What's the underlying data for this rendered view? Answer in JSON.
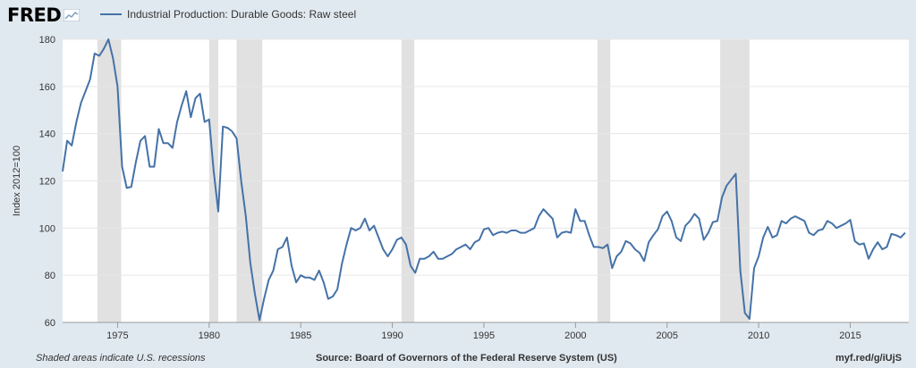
{
  "header": {
    "logo_text": "FRED",
    "logo_icon": "fred-chart-icon"
  },
  "footer": {
    "note": "Shaded areas indicate U.S. recessions",
    "source": "Source: Board of Governors of the Federal Reserve System (US)",
    "link": "myf.red/g/iUjS"
  },
  "colors": {
    "series": "#4572a7",
    "recession": "#e1e1e1",
    "grid": "#e6e6e6",
    "background": "#e1e9f0",
    "plot": "#ffffff"
  },
  "chart_data": {
    "type": "line",
    "ylabel": "Index 2012=100",
    "xlabel": "",
    "ylim": [
      60,
      180
    ],
    "xlim": [
      1972.0,
      2018.2
    ],
    "yticks": [
      60,
      80,
      100,
      120,
      140,
      160,
      180
    ],
    "xticks": [
      1975,
      1980,
      1985,
      1990,
      1995,
      2000,
      2005,
      2010,
      2015
    ],
    "grid": true,
    "legend_position": "top-left",
    "recessions": [
      [
        1973.9,
        1975.2
      ],
      [
        1980.0,
        1980.5
      ],
      [
        1981.5,
        1982.9
      ],
      [
        1990.5,
        1991.2
      ],
      [
        2001.2,
        2001.9
      ],
      [
        2007.9,
        2009.5
      ]
    ],
    "series": [
      {
        "name": "Industrial Production: Durable Goods: Raw steel",
        "x": [
          1972.0,
          1972.25,
          1972.5,
          1972.75,
          1973.0,
          1973.25,
          1973.5,
          1973.75,
          1974.0,
          1974.25,
          1974.5,
          1974.75,
          1975.0,
          1975.25,
          1975.5,
          1975.75,
          1976.0,
          1976.25,
          1976.5,
          1976.75,
          1977.0,
          1977.25,
          1977.5,
          1977.75,
          1978.0,
          1978.25,
          1978.5,
          1978.75,
          1979.0,
          1979.25,
          1979.5,
          1979.75,
          1980.0,
          1980.25,
          1980.5,
          1980.75,
          1981.0,
          1981.25,
          1981.5,
          1981.75,
          1982.0,
          1982.25,
          1982.5,
          1982.75,
          1983.0,
          1983.25,
          1983.5,
          1983.75,
          1984.0,
          1984.25,
          1984.5,
          1984.75,
          1985.0,
          1985.25,
          1985.5,
          1985.75,
          1986.0,
          1986.25,
          1986.5,
          1986.75,
          1987.0,
          1987.25,
          1987.5,
          1987.75,
          1988.0,
          1988.25,
          1988.5,
          1988.75,
          1989.0,
          1989.25,
          1989.5,
          1989.75,
          1990.0,
          1990.25,
          1990.5,
          1990.75,
          1991.0,
          1991.25,
          1991.5,
          1991.75,
          1992.0,
          1992.25,
          1992.5,
          1992.75,
          1993.0,
          1993.25,
          1993.5,
          1993.75,
          1994.0,
          1994.25,
          1994.5,
          1994.75,
          1995.0,
          1995.25,
          1995.5,
          1995.75,
          1996.0,
          1996.25,
          1996.5,
          1996.75,
          1997.0,
          1997.25,
          1997.5,
          1997.75,
          1998.0,
          1998.25,
          1998.5,
          1998.75,
          1999.0,
          1999.25,
          1999.5,
          1999.75,
          2000.0,
          2000.25,
          2000.5,
          2000.75,
          2001.0,
          2001.25,
          2001.5,
          2001.75,
          2002.0,
          2002.25,
          2002.5,
          2002.75,
          2003.0,
          2003.25,
          2003.5,
          2003.75,
          2004.0,
          2004.25,
          2004.5,
          2004.75,
          2005.0,
          2005.25,
          2005.5,
          2005.75,
          2006.0,
          2006.25,
          2006.5,
          2006.75,
          2007.0,
          2007.25,
          2007.5,
          2007.75,
          2008.0,
          2008.25,
          2008.5,
          2008.75,
          2009.0,
          2009.25,
          2009.5,
          2009.75,
          2010.0,
          2010.25,
          2010.5,
          2010.75,
          2011.0,
          2011.25,
          2011.5,
          2011.75,
          2012.0,
          2012.25,
          2012.5,
          2012.75,
          2013.0,
          2013.25,
          2013.5,
          2013.75,
          2014.0,
          2014.25,
          2014.5,
          2014.75,
          2015.0,
          2015.25,
          2015.5,
          2015.75,
          2016.0,
          2016.25,
          2016.5,
          2016.75,
          2017.0,
          2017.25,
          2017.5,
          2017.75,
          2018.0
        ],
        "values": [
          124,
          137,
          135,
          145,
          153,
          158,
          163,
          174,
          173,
          176,
          180,
          172,
          160,
          126,
          117,
          117.5,
          128,
          137,
          139,
          126,
          126,
          142,
          136,
          136,
          134,
          145,
          152,
          158,
          147,
          155,
          157,
          145,
          146,
          124,
          107,
          143,
          142.5,
          141,
          138,
          120,
          105,
          85,
          72,
          61,
          70,
          78,
          82,
          91,
          92,
          96,
          84,
          77,
          80,
          79,
          79,
          78,
          82,
          77,
          70,
          71,
          74,
          85,
          93,
          100,
          99,
          100,
          104,
          99,
          101,
          96,
          91,
          88,
          91,
          95,
          96,
          93,
          84,
          81,
          87,
          87,
          88,
          90,
          87,
          87,
          88,
          89,
          91,
          92,
          93,
          91,
          94,
          95,
          99.5,
          100,
          97,
          98,
          98.5,
          98,
          99,
          99,
          98,
          98,
          99,
          100,
          105,
          108,
          106,
          104,
          96,
          98,
          98.5,
          98,
          108,
          103,
          103,
          97,
          92,
          92,
          91.5,
          93,
          83,
          88,
          90,
          94.5,
          93.5,
          91,
          89.5,
          86,
          94,
          97,
          99.5,
          105,
          107,
          103,
          96,
          94.5,
          101,
          103,
          106,
          104,
          95,
          98,
          102.5,
          103,
          113,
          118,
          120.5,
          123,
          82,
          64,
          61.5,
          83,
          88,
          96,
          100.5,
          96,
          97,
          103,
          102,
          104,
          105,
          104,
          103,
          98,
          97,
          99,
          99.5,
          103,
          102,
          100,
          101,
          102,
          103.5,
          94.5,
          93,
          93.5,
          87,
          91,
          94,
          91,
          92,
          97.5,
          97,
          96,
          98
        ]
      }
    ]
  }
}
